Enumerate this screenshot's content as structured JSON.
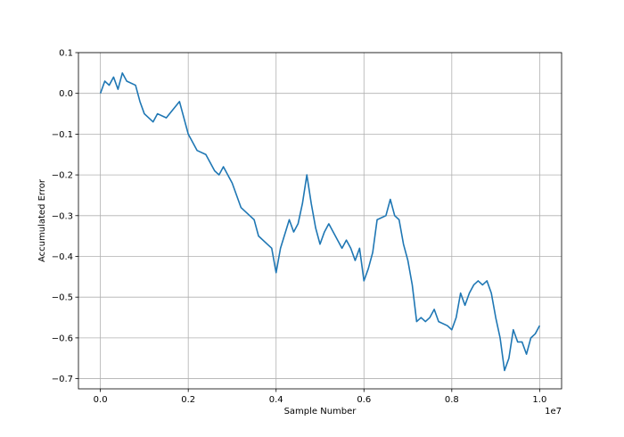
{
  "chart_data": {
    "type": "line",
    "title": "",
    "xlabel": "Sample Number",
    "ylabel": "Accumulated Error",
    "x_offset_label": "1e7",
    "xlim": [
      -0.05,
      1.05
    ],
    "ylim": [
      -0.725,
      0.1
    ],
    "grid": true,
    "line_color": "#1f77b4",
    "x_ticks": [
      0.0,
      0.2,
      0.4,
      0.6,
      0.8,
      1.0
    ],
    "x_tick_labels": [
      "0.0",
      "0.2",
      "0.4",
      "0.6",
      "0.8",
      "1.0"
    ],
    "y_ticks": [
      0.1,
      0.0,
      -0.1,
      -0.2,
      -0.3,
      -0.4,
      -0.5,
      -0.6,
      -0.7
    ],
    "y_tick_labels": [
      "0.1",
      "0.0",
      "−0.1",
      "−0.2",
      "−0.3",
      "−0.4",
      "−0.5",
      "−0.6",
      "−0.7"
    ],
    "series": [
      {
        "x": [
          0.0,
          0.01,
          0.02,
          0.03,
          0.04,
          0.05,
          0.06,
          0.08,
          0.09,
          0.1,
          0.12,
          0.13,
          0.15,
          0.18,
          0.2,
          0.22,
          0.24,
          0.26,
          0.27,
          0.28,
          0.3,
          0.32,
          0.34,
          0.35,
          0.36,
          0.38,
          0.39,
          0.4,
          0.41,
          0.43,
          0.44,
          0.45,
          0.46,
          0.47,
          0.48,
          0.49,
          0.5,
          0.51,
          0.52,
          0.54,
          0.55,
          0.56,
          0.57,
          0.58,
          0.59,
          0.6,
          0.61,
          0.62,
          0.63,
          0.65,
          0.66,
          0.67,
          0.68,
          0.69,
          0.7,
          0.71,
          0.72,
          0.73,
          0.74,
          0.75,
          0.76,
          0.77,
          0.79,
          0.8,
          0.81,
          0.82,
          0.83,
          0.84,
          0.85,
          0.86,
          0.87,
          0.88,
          0.89,
          0.9,
          0.91,
          0.92,
          0.93,
          0.94,
          0.95,
          0.96,
          0.97,
          0.98,
          0.99,
          1.0
        ],
        "y": [
          0.0,
          0.03,
          0.02,
          0.04,
          0.01,
          0.05,
          0.03,
          0.02,
          -0.02,
          -0.05,
          -0.07,
          -0.05,
          -0.06,
          -0.02,
          -0.1,
          -0.14,
          -0.15,
          -0.19,
          -0.2,
          -0.18,
          -0.22,
          -0.28,
          -0.3,
          -0.31,
          -0.35,
          -0.37,
          -0.38,
          -0.44,
          -0.38,
          -0.31,
          -0.34,
          -0.32,
          -0.27,
          -0.2,
          -0.27,
          -0.33,
          -0.37,
          -0.34,
          -0.32,
          -0.36,
          -0.38,
          -0.36,
          -0.38,
          -0.41,
          -0.38,
          -0.46,
          -0.43,
          -0.39,
          -0.31,
          -0.3,
          -0.26,
          -0.3,
          -0.31,
          -0.37,
          -0.41,
          -0.47,
          -0.56,
          -0.55,
          -0.56,
          -0.55,
          -0.53,
          -0.56,
          -0.57,
          -0.58,
          -0.55,
          -0.49,
          -0.52,
          -0.49,
          -0.47,
          -0.46,
          -0.47,
          -0.46,
          -0.49,
          -0.55,
          -0.6,
          -0.68,
          -0.65,
          -0.58,
          -0.61,
          -0.61,
          -0.64,
          -0.6,
          -0.59,
          -0.57
        ]
      }
    ]
  }
}
